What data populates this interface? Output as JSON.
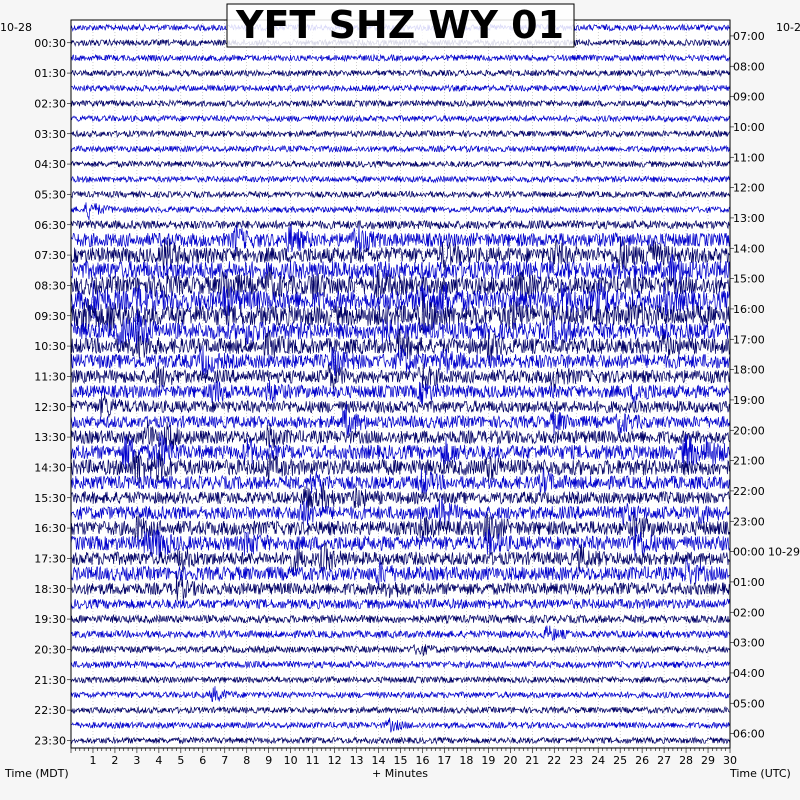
{
  "chart_data": {
    "type": "line",
    "title": "YFT SHZ WY 01",
    "xlabel": "+ Minutes",
    "left_axis_title": "Time (MDT)",
    "right_axis_title": "Time (UTC)",
    "left_date_label": "10-28",
    "right_date_label": "10-2",
    "right_date_change_label": "10-29",
    "x_ticks": [
      1,
      2,
      3,
      4,
      5,
      6,
      7,
      8,
      9,
      10,
      11,
      12,
      13,
      14,
      15,
      16,
      17,
      18,
      19,
      20,
      21,
      22,
      23,
      24,
      25,
      26,
      27,
      28,
      29,
      30
    ],
    "xlim": [
      0,
      30
    ],
    "rows": 48,
    "row_minutes": 30,
    "left_time_labels": [
      "00:30",
      "01:30",
      "02:30",
      "03:30",
      "04:30",
      "05:30",
      "06:30",
      "07:30",
      "08:30",
      "09:30",
      "10:30",
      "11:30",
      "12:30",
      "13:30",
      "14:30",
      "15:30",
      "16:30",
      "17:30",
      "18:30",
      "19:30",
      "20:30",
      "21:30",
      "22:30",
      "23:30"
    ],
    "right_time_labels": [
      "07:00",
      "08:00",
      "09:00",
      "10:00",
      "11:00",
      "12:00",
      "13:00",
      "14:00",
      "15:00",
      "16:00",
      "17:00",
      "18:00",
      "19:00",
      "20:00",
      "21:00",
      "22:00",
      "23:00",
      "00:00",
      "01:00",
      "02:00",
      "03:00",
      "04:00",
      "05:00",
      "06:00"
    ],
    "trace_colors": [
      "#0000cc",
      "#000066"
    ],
    "background": "#ffffff",
    "activity_by_row": [
      1.0,
      1.0,
      1.0,
      1.0,
      1.0,
      1.0,
      1.0,
      1.0,
      1.0,
      1.0,
      1.0,
      1.0,
      1.0,
      1.4,
      2.3,
      2.6,
      3.0,
      3.0,
      3.3,
      3.4,
      2.8,
      2.6,
      2.4,
      2.2,
      2.1,
      2.0,
      2.0,
      2.2,
      2.4,
      2.6,
      2.2,
      2.0,
      2.2,
      2.4,
      2.4,
      2.2,
      2.3,
      2.0,
      1.6,
      1.3,
      1.2,
      1.1,
      1.1,
      1.0,
      1.0,
      1.0,
      1.0,
      1.0
    ]
  }
}
